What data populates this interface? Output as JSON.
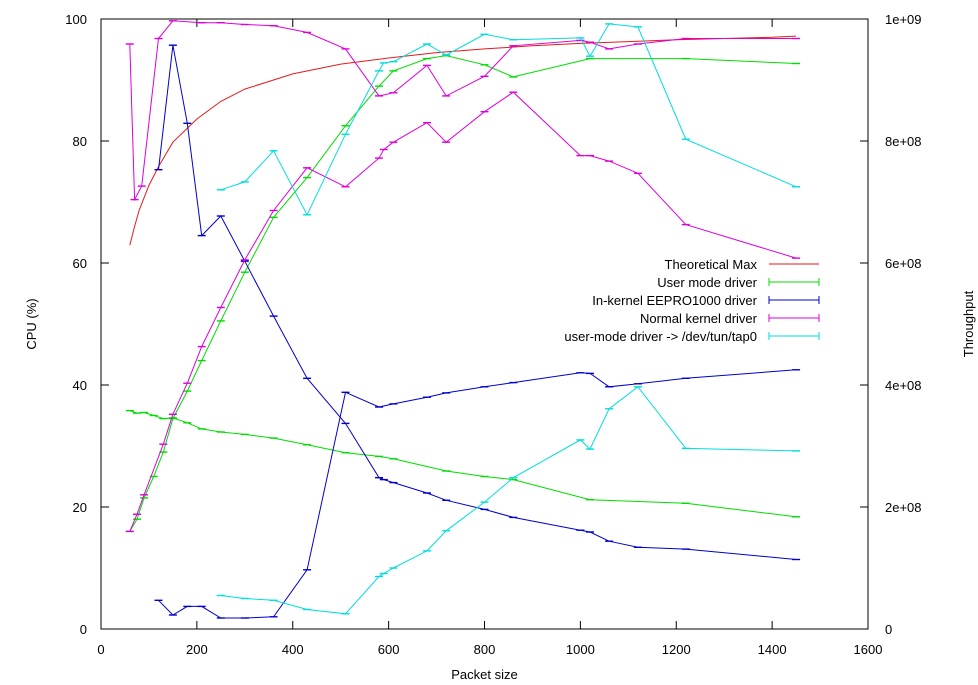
{
  "chart_data": {
    "type": "line",
    "xlabel": "Packet size",
    "ylabel_left": "CPU (%)",
    "ylabel_right": "Throughput",
    "xlim": [
      0,
      1600
    ],
    "ylim_left": [
      0,
      100
    ],
    "ylim_right": [
      0,
      1000000000
    ],
    "x_ticks": [
      0,
      200,
      400,
      600,
      800,
      1000,
      1200,
      1400,
      1600
    ],
    "x_tick_labels": [
      "0",
      "200",
      "400",
      "600",
      "800",
      "1000",
      "1200",
      "1400",
      "1600"
    ],
    "y_left_ticks": [
      0,
      20,
      40,
      60,
      80,
      100
    ],
    "y_left_tick_labels": [
      "0",
      "20",
      "40",
      "60",
      "80",
      "100"
    ],
    "y_right_ticks": [
      0,
      200000000,
      400000000,
      600000000,
      800000000,
      1000000000
    ],
    "y_right_tick_labels": [
      "0",
      "2e+08",
      "4e+08",
      "6e+08",
      "8e+08",
      "1e+09"
    ],
    "grid": false,
    "legend_position": "center-right",
    "series": [
      {
        "name": "Theoretical Max",
        "color": "#e41a1c",
        "axis": "left",
        "style": "line",
        "x": [
          60,
          70,
          80,
          100,
          120,
          150,
          200,
          250,
          300,
          400,
          500,
          600,
          700,
          800,
          900,
          1000,
          1100,
          1200,
          1300,
          1400,
          1450
        ],
        "y": [
          62.9,
          66.0,
          68.7,
          72.7,
          75.8,
          79.8,
          83.6,
          86.5,
          88.5,
          91.0,
          92.6,
          93.6,
          94.5,
          95.1,
          95.6,
          96.0,
          96.3,
          96.6,
          96.8,
          97.0,
          97.2
        ]
      },
      {
        "name": "User mode driver",
        "color": "#00dd00",
        "axis": "right",
        "style": "line-errorbar",
        "x": [
          60,
          75,
          90,
          110,
          130,
          150,
          180,
          210,
          250,
          300,
          360,
          430,
          510,
          580,
          610,
          680,
          720,
          800,
          860,
          1020,
          1220,
          1450
        ],
        "y": [
          160000000,
          180000000,
          215000000,
          250000000,
          290000000,
          345000000,
          390000000,
          440000000,
          505000000,
          585000000,
          675000000,
          740000000,
          825000000,
          890000000,
          915000000,
          935000000,
          940000000,
          925000000,
          905000000,
          935000000,
          935000000,
          927000000
        ]
      },
      {
        "name": "User mode driver",
        "color": "#00dd00",
        "axis": "left",
        "style": "line-errorbar",
        "x": [
          60,
          75,
          90,
          110,
          130,
          150,
          180,
          210,
          250,
          300,
          360,
          430,
          510,
          580,
          610,
          720,
          800,
          860,
          1020,
          1220,
          1450
        ],
        "y": [
          35.8,
          35.4,
          35.5,
          35.0,
          34.5,
          34.6,
          33.8,
          32.8,
          32.3,
          31.9,
          31.3,
          30.2,
          28.9,
          28.3,
          27.9,
          25.9,
          25.0,
          24.5,
          21.2,
          20.6,
          18.4
        ]
      },
      {
        "name": "In-kernel EEPRO1000 driver",
        "color": "#0000cc",
        "axis": "left",
        "style": "line-errorbar",
        "x": [
          120,
          150,
          180,
          210,
          250,
          300,
          360,
          430,
          510,
          580,
          590,
          610,
          680,
          720,
          800,
          860,
          1000,
          1020,
          1060,
          1120,
          1220,
          1450
        ],
        "y": [
          75.3,
          95.7,
          82.9,
          64.5,
          67.7,
          60.3,
          51.3,
          41.1,
          33.7,
          24.8,
          24.5,
          24.0,
          22.3,
          21.1,
          19.6,
          18.3,
          16.2,
          15.9,
          14.4,
          13.4,
          13.1,
          11.4
        ]
      },
      {
        "name": "In-kernel EEPRO1000 driver",
        "color": "#0000cc",
        "axis": "right",
        "style": "line-errorbar",
        "x": [
          120,
          150,
          180,
          210,
          250,
          300,
          360,
          430,
          510,
          580,
          610,
          680,
          720,
          800,
          860,
          1000,
          1020,
          1060,
          1120,
          1220,
          1450
        ],
        "y": [
          47000000,
          23000000,
          37000000,
          37000000,
          18000000,
          18000000,
          20000000,
          97000000,
          388000000,
          364000000,
          369000000,
          380000000,
          387000000,
          397000000,
          404000000,
          420000000,
          419000000,
          397000000,
          402000000,
          411000000,
          425000000
        ]
      },
      {
        "name": "Normal kernel driver",
        "color": "#dd00dd",
        "axis": "left",
        "style": "line-errorbar",
        "x": [
          60,
          70,
          85,
          120,
          150,
          210,
          250,
          300,
          360,
          430,
          510,
          580,
          610,
          680,
          720,
          800,
          860,
          1000,
          1020,
          1060,
          1120,
          1220,
          1450
        ],
        "y": [
          95.9,
          70.4,
          72.6,
          96.8,
          99.7,
          99.4,
          99.4,
          99.1,
          98.9,
          97.8,
          95.1,
          87.4,
          87.9,
          92.4,
          87.4,
          90.6,
          95.6,
          96.5,
          96.2,
          95.1,
          95.9,
          96.8,
          96.8
        ]
      },
      {
        "name": "Normal kernel driver",
        "color": "#dd00dd",
        "axis": "right",
        "style": "line-errorbar",
        "x": [
          60,
          75,
          90,
          130,
          150,
          180,
          210,
          250,
          300,
          360,
          430,
          510,
          580,
          590,
          610,
          680,
          720,
          800,
          860,
          1000,
          1020,
          1060,
          1120,
          1220,
          1450
        ],
        "y": [
          160000000,
          188000000,
          220000000,
          303000000,
          352000000,
          403000000,
          463000000,
          527000000,
          605000000,
          686000000,
          756000000,
          725000000,
          772000000,
          786000000,
          798000000,
          830000000,
          798000000,
          848000000,
          880000000,
          776000000,
          776000000,
          767000000,
          747000000,
          663000000,
          608000000
        ]
      },
      {
        "name": "user-mode driver -> /dev/tun/tap0",
        "color": "#00dddd",
        "axis": "right",
        "style": "line-errorbar",
        "x": [
          250,
          300,
          360,
          430,
          510,
          580,
          590,
          610,
          680,
          720,
          800,
          860,
          1000,
          1020,
          1060,
          1120,
          1220,
          1450
        ],
        "y": [
          720000000,
          733000000,
          784000000,
          679000000,
          811000000,
          915000000,
          928000000,
          930000000,
          959000000,
          941000000,
          975000000,
          966000000,
          969000000,
          939000000,
          992000000,
          987000000,
          803000000,
          725000000
        ]
      },
      {
        "name": "user-mode driver -> /dev/tun/tap0",
        "color": "#00dddd",
        "axis": "left",
        "style": "line-errorbar",
        "x": [
          250,
          300,
          360,
          430,
          510,
          580,
          590,
          610,
          680,
          720,
          800,
          860,
          1000,
          1020,
          1060,
          1120,
          1220,
          1450
        ],
        "y": [
          5.5,
          5.0,
          4.7,
          3.2,
          2.5,
          8.6,
          9.1,
          10.0,
          12.8,
          16.1,
          20.8,
          24.8,
          31.0,
          29.5,
          36.1,
          39.7,
          29.6,
          29.2
        ]
      }
    ]
  }
}
